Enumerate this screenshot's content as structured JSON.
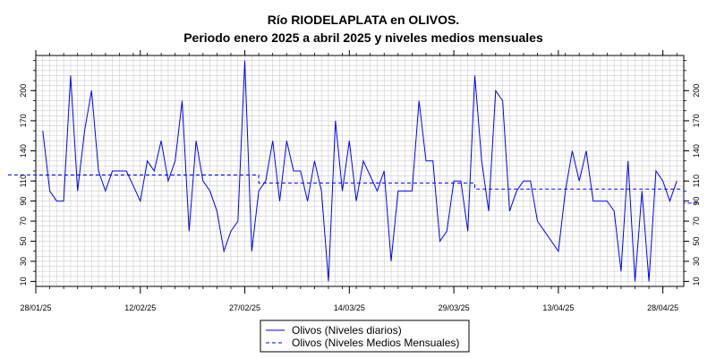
{
  "chart_data": {
    "type": "line",
    "title": "Río RIODELAPLATA en OLIVOS.",
    "subtitle": "Periodo enero 2025 a abril 2025 y niveles medios mensuales",
    "xlabel": "",
    "ylabel": "",
    "x_ticks": [
      "28/01/25",
      "12/02/25",
      "27/02/25",
      "14/03/25",
      "29/03/25",
      "13/04/25",
      "28/04/25"
    ],
    "y_ticks": [
      10,
      30,
      50,
      70,
      90,
      110,
      140,
      170,
      200
    ],
    "ylim": [
      5,
      235
    ],
    "xlim": [
      "2025-01-28",
      "2025-05-01"
    ],
    "grid": true,
    "legend_position": "bottom-center",
    "series": [
      {
        "name": "Olivos (Niveles diarios)",
        "color": "#0000ff",
        "style": "solid",
        "points": [
          [
            "2025-01-29",
            160
          ],
          [
            "2025-01-30",
            100
          ],
          [
            "2025-01-31",
            90
          ],
          [
            "2025-02-01",
            90
          ],
          [
            "2025-02-02",
            215
          ],
          [
            "2025-02-03",
            100
          ],
          [
            "2025-02-04",
            160
          ],
          [
            "2025-02-05",
            200
          ],
          [
            "2025-02-06",
            120
          ],
          [
            "2025-02-07",
            100
          ],
          [
            "2025-02-08",
            120
          ],
          [
            "2025-02-09",
            120
          ],
          [
            "2025-02-10",
            120
          ],
          [
            "2025-02-11",
            105
          ],
          [
            "2025-02-12",
            90
          ],
          [
            "2025-02-13",
            130
          ],
          [
            "2025-02-14",
            120
          ],
          [
            "2025-02-15",
            150
          ],
          [
            "2025-02-16",
            110
          ],
          [
            "2025-02-17",
            130
          ],
          [
            "2025-02-18",
            190
          ],
          [
            "2025-02-19",
            60
          ],
          [
            "2025-02-20",
            150
          ],
          [
            "2025-02-21",
            110
          ],
          [
            "2025-02-22",
            100
          ],
          [
            "2025-02-23",
            80
          ],
          [
            "2025-02-24",
            40
          ],
          [
            "2025-02-25",
            60
          ],
          [
            "2025-02-26",
            70
          ],
          [
            "2025-02-27",
            230
          ],
          [
            "2025-02-28",
            40
          ],
          [
            "2025-03-01",
            100
          ],
          [
            "2025-03-02",
            110
          ],
          [
            "2025-03-03",
            150
          ],
          [
            "2025-03-04",
            90
          ],
          [
            "2025-03-05",
            150
          ],
          [
            "2025-03-06",
            120
          ],
          [
            "2025-03-07",
            120
          ],
          [
            "2025-03-08",
            90
          ],
          [
            "2025-03-09",
            130
          ],
          [
            "2025-03-10",
            100
          ],
          [
            "2025-03-11",
            10
          ],
          [
            "2025-03-12",
            170
          ],
          [
            "2025-03-13",
            100
          ],
          [
            "2025-03-14",
            150
          ],
          [
            "2025-03-15",
            90
          ],
          [
            "2025-03-16",
            130
          ],
          [
            "2025-03-17",
            115
          ],
          [
            "2025-03-18",
            100
          ],
          [
            "2025-03-19",
            120
          ],
          [
            "2025-03-20",
            30
          ],
          [
            "2025-03-21",
            100
          ],
          [
            "2025-03-22",
            100
          ],
          [
            "2025-03-23",
            100
          ],
          [
            "2025-03-24",
            190
          ],
          [
            "2025-03-25",
            130
          ],
          [
            "2025-03-26",
            130
          ],
          [
            "2025-03-27",
            50
          ],
          [
            "2025-03-28",
            60
          ],
          [
            "2025-03-29",
            110
          ],
          [
            "2025-03-30",
            110
          ],
          [
            "2025-03-31",
            60
          ],
          [
            "2025-04-01",
            215
          ],
          [
            "2025-04-02",
            130
          ],
          [
            "2025-04-03",
            80
          ],
          [
            "2025-04-04",
            200
          ],
          [
            "2025-04-05",
            190
          ],
          [
            "2025-04-06",
            80
          ],
          [
            "2025-04-07",
            100
          ],
          [
            "2025-04-08",
            110
          ],
          [
            "2025-04-09",
            110
          ],
          [
            "2025-04-10",
            70
          ],
          [
            "2025-04-11",
            60
          ],
          [
            "2025-04-12",
            50
          ],
          [
            "2025-04-13",
            40
          ],
          [
            "2025-04-14",
            100
          ],
          [
            "2025-04-15",
            140
          ],
          [
            "2025-04-16",
            110
          ],
          [
            "2025-04-17",
            140
          ],
          [
            "2025-04-18",
            90
          ],
          [
            "2025-04-19",
            90
          ],
          [
            "2025-04-20",
            90
          ],
          [
            "2025-04-21",
            80
          ],
          [
            "2025-04-22",
            20
          ],
          [
            "2025-04-23",
            130
          ],
          [
            "2025-04-24",
            10
          ],
          [
            "2025-04-25",
            100
          ],
          [
            "2025-04-26",
            10
          ],
          [
            "2025-04-27",
            120
          ],
          [
            "2025-04-28",
            110
          ],
          [
            "2025-04-29",
            90
          ],
          [
            "2025-04-30",
            110
          ]
        ]
      },
      {
        "name": "Olivos (Niveles Medios Mensuales)",
        "color": "#0000ff",
        "style": "dashed",
        "step": true,
        "points": [
          [
            "2025-01-24",
            116
          ],
          [
            "2025-03-01",
            116
          ],
          [
            "2025-03-01",
            108
          ],
          [
            "2025-04-01",
            108
          ],
          [
            "2025-04-01",
            102
          ],
          [
            "2025-05-01",
            102
          ],
          [
            "2025-05-01",
            88
          ],
          [
            "2025-05-03",
            88
          ]
        ]
      }
    ]
  }
}
